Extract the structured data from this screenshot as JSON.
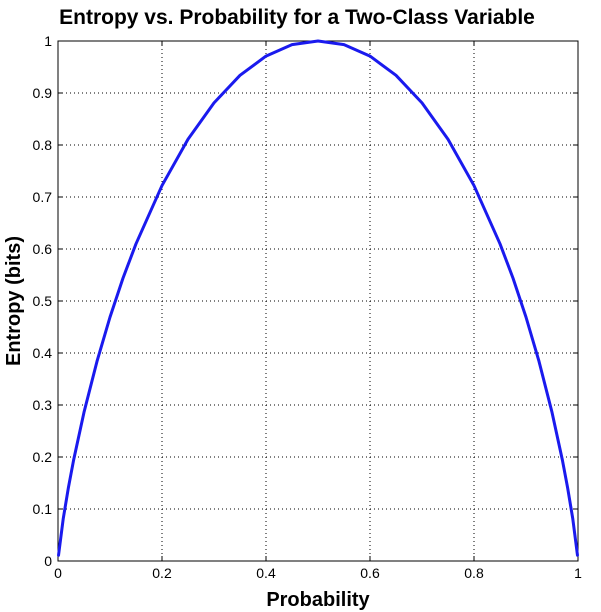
{
  "chart_data": {
    "type": "line",
    "title": "Entropy vs. Probability for a Two-Class Variable",
    "xlabel": "Probability",
    "ylabel": "Entropy (bits)",
    "xlim": [
      0,
      1
    ],
    "ylim": [
      0,
      1
    ],
    "grid": true,
    "xticks": [
      "0",
      "0.2",
      "0.4",
      "0.6",
      "0.8",
      "1"
    ],
    "yticks": [
      "0",
      "0.1",
      "0.2",
      "0.3",
      "0.4",
      "0.5",
      "0.6",
      "0.7",
      "0.8",
      "0.9",
      "1"
    ],
    "line_color": "#1a1aee",
    "series": [
      {
        "x": [
          0.001,
          0.01,
          0.02,
          0.03,
          0.05,
          0.075,
          0.1,
          0.125,
          0.15,
          0.2,
          0.25,
          0.3,
          0.35,
          0.4,
          0.45,
          0.5,
          0.55,
          0.6,
          0.65,
          0.7,
          0.75,
          0.8,
          0.85,
          0.875,
          0.9,
          0.925,
          0.95,
          0.97,
          0.98,
          0.99,
          0.999
        ],
        "y": [
          0.011,
          0.081,
          0.141,
          0.194,
          0.286,
          0.384,
          0.469,
          0.544,
          0.61,
          0.722,
          0.811,
          0.881,
          0.934,
          0.971,
          0.993,
          1.0,
          0.993,
          0.971,
          0.934,
          0.881,
          0.811,
          0.722,
          0.61,
          0.544,
          0.469,
          0.384,
          0.286,
          0.194,
          0.141,
          0.081,
          0.011
        ]
      }
    ]
  }
}
